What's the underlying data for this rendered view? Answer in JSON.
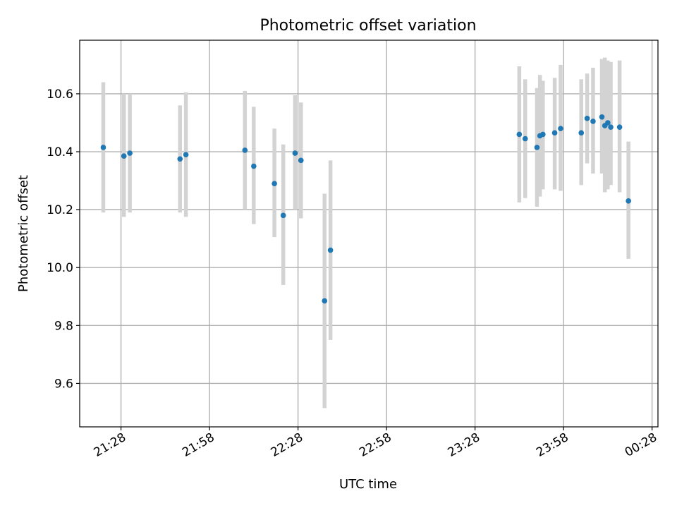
{
  "chart_data": {
    "type": "scatter",
    "title": "Photometric offset variation",
    "xlabel": "UTC time",
    "ylabel": "Photometric offset",
    "x_unit": "UTC clock time (HH:MM)",
    "xlim": [
      "21:14",
      "00:30"
    ],
    "ylim": [
      9.45,
      10.785
    ],
    "x_ticks": [
      "21:28",
      "21:58",
      "22:28",
      "22:58",
      "23:28",
      "23:58",
      "00:28"
    ],
    "y_ticks": [
      9.6,
      9.8,
      10.0,
      10.2,
      10.4,
      10.6
    ],
    "grid": true,
    "error_bar_color": "#d3d3d3",
    "marker_color": "#1f77b4",
    "points": [
      {
        "x": "21:22",
        "y": 10.415,
        "ylow": 10.19,
        "yhigh": 10.64
      },
      {
        "x": "21:29",
        "y": 10.385,
        "ylow": 10.175,
        "yhigh": 10.6
      },
      {
        "x": "21:31",
        "y": 10.395,
        "ylow": 10.19,
        "yhigh": 10.6
      },
      {
        "x": "21:48",
        "y": 10.375,
        "ylow": 10.19,
        "yhigh": 10.56
      },
      {
        "x": "21:50",
        "y": 10.39,
        "ylow": 10.175,
        "yhigh": 10.605
      },
      {
        "x": "22:10",
        "y": 10.405,
        "ylow": 10.2,
        "yhigh": 10.61
      },
      {
        "x": "22:13",
        "y": 10.35,
        "ylow": 10.15,
        "yhigh": 10.555
      },
      {
        "x": "22:20",
        "y": 10.29,
        "ylow": 10.105,
        "yhigh": 10.48
      },
      {
        "x": "22:23",
        "y": 10.18,
        "ylow": 9.94,
        "yhigh": 10.425
      },
      {
        "x": "22:27",
        "y": 10.395,
        "ylow": 10.2,
        "yhigh": 10.595
      },
      {
        "x": "22:29",
        "y": 10.37,
        "ylow": 10.17,
        "yhigh": 10.57
      },
      {
        "x": "22:37",
        "y": 9.885,
        "ylow": 9.515,
        "yhigh": 10.255
      },
      {
        "x": "22:39",
        "y": 10.06,
        "ylow": 9.75,
        "yhigh": 10.37
      },
      {
        "x": "23:43",
        "y": 10.46,
        "ylow": 10.225,
        "yhigh": 10.695
      },
      {
        "x": "23:45",
        "y": 10.445,
        "ylow": 10.24,
        "yhigh": 10.65
      },
      {
        "x": "23:49",
        "y": 10.415,
        "ylow": 10.21,
        "yhigh": 10.62
      },
      {
        "x": "23:50",
        "y": 10.455,
        "ylow": 10.245,
        "yhigh": 10.665
      },
      {
        "x": "23:51",
        "y": 10.46,
        "ylow": 10.27,
        "yhigh": 10.645
      },
      {
        "x": "23:55",
        "y": 10.465,
        "ylow": 10.27,
        "yhigh": 10.655
      },
      {
        "x": "23:57",
        "y": 10.48,
        "ylow": 10.265,
        "yhigh": 10.7
      },
      {
        "x": "00:04",
        "y": 10.465,
        "ylow": 10.285,
        "yhigh": 10.65
      },
      {
        "x": "00:06",
        "y": 10.515,
        "ylow": 10.36,
        "yhigh": 10.67
      },
      {
        "x": "00:08",
        "y": 10.505,
        "ylow": 10.325,
        "yhigh": 10.69
      },
      {
        "x": "00:11",
        "y": 10.52,
        "ylow": 10.325,
        "yhigh": 10.72
      },
      {
        "x": "00:12",
        "y": 10.49,
        "ylow": 10.26,
        "yhigh": 10.725
      },
      {
        "x": "00:13",
        "y": 10.5,
        "ylow": 10.27,
        "yhigh": 10.715
      },
      {
        "x": "00:14",
        "y": 10.485,
        "ylow": 10.285,
        "yhigh": 10.71
      },
      {
        "x": "00:17",
        "y": 10.485,
        "ylow": 10.26,
        "yhigh": 10.715
      },
      {
        "x": "00:20",
        "y": 10.23,
        "ylow": 10.03,
        "yhigh": 10.435
      }
    ]
  }
}
